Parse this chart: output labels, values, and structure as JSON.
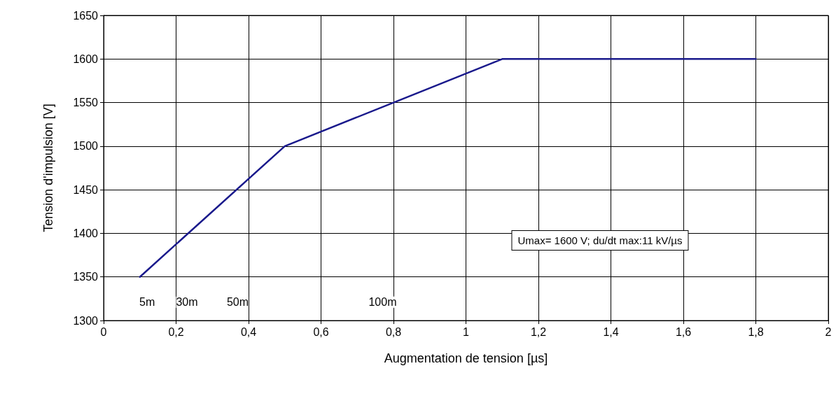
{
  "chart_data": {
    "type": "line",
    "xlabel": "Augmentation de tension [µs]",
    "ylabel": "Tension d'impulsion [V]",
    "x": [
      0.1,
      0.5,
      0.8,
      1.1,
      1.8
    ],
    "series": [
      {
        "color": "#1a1a8c",
        "values": [
          1350,
          1500,
          1550,
          1600,
          1600
        ]
      }
    ],
    "xlim": [
      0,
      2
    ],
    "xticks": [
      0,
      {
        "value": 0.2,
        "label": "0,2"
      },
      {
        "value": 0.4,
        "label": "0,4"
      },
      {
        "value": 0.6,
        "label": "0,6"
      },
      {
        "value": 0.8,
        "label": "0,8"
      },
      1,
      {
        "value": 1.2,
        "label": "1,2"
      },
      {
        "value": 1.4,
        "label": "1,4"
      },
      {
        "value": 1.6,
        "label": "1,6"
      },
      {
        "value": 1.8,
        "label": "1,8"
      },
      2
    ],
    "ylim": [
      1300,
      1650
    ],
    "yticks": [
      1300,
      1350,
      1400,
      1450,
      1500,
      1550,
      1600,
      1650
    ],
    "grid": true,
    "marker": "none",
    "line_style": "solid",
    "annotations": [
      {
        "text": "5m",
        "x": 0.12,
        "y": 1321
      },
      {
        "text": "30m",
        "x": 0.23,
        "y": 1321
      },
      {
        "text": "50m",
        "x": 0.37,
        "y": 1321
      },
      {
        "text": "100m",
        "x": 0.77,
        "y": 1321
      },
      "Umax= 1600 V; du/dt max:11 kV/µs"
    ]
  }
}
